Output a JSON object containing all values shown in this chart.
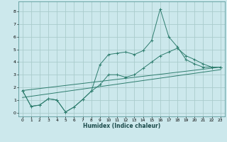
{
  "xlabel": "Humidex (Indice chaleur)",
  "bg_color": "#cce8ec",
  "grid_color": "#aacccc",
  "line_color": "#2e7d6e",
  "xlim": [
    -0.5,
    23.5
  ],
  "ylim": [
    -0.3,
    8.8
  ],
  "xticks": [
    0,
    1,
    2,
    3,
    4,
    5,
    6,
    7,
    8,
    9,
    10,
    11,
    12,
    13,
    14,
    15,
    16,
    17,
    18,
    19,
    20,
    21,
    22,
    23
  ],
  "yticks": [
    0,
    1,
    2,
    3,
    4,
    5,
    6,
    7,
    8
  ],
  "series1_x": [
    0,
    1,
    2,
    3,
    4,
    5,
    6,
    7,
    8,
    9,
    10,
    11,
    12,
    13,
    14,
    15,
    16,
    17,
    18,
    19,
    20,
    21,
    22,
    23
  ],
  "series1_y": [
    1.75,
    0.5,
    0.6,
    1.1,
    1.0,
    0.05,
    0.45,
    1.05,
    1.7,
    3.8,
    4.6,
    4.7,
    4.8,
    4.6,
    4.9,
    5.7,
    8.2,
    6.0,
    5.2,
    4.2,
    3.85,
    3.6,
    3.6,
    3.6
  ],
  "series2_x": [
    0,
    1,
    2,
    3,
    4,
    5,
    6,
    7,
    8,
    9,
    10,
    11,
    12,
    13,
    14,
    15,
    16,
    17,
    18,
    19,
    20,
    21,
    22,
    23
  ],
  "series2_y": [
    1.75,
    0.5,
    0.6,
    1.1,
    1.0,
    0.05,
    0.45,
    1.05,
    1.7,
    2.2,
    3.0,
    3.0,
    2.8,
    3.0,
    3.5,
    4.0,
    4.5,
    4.8,
    5.1,
    4.5,
    4.2,
    3.85,
    3.6,
    3.6
  ],
  "series3_x": [
    0,
    23
  ],
  "series3_y": [
    1.75,
    3.6
  ],
  "series4_x": [
    0,
    23
  ],
  "series4_y": [
    1.2,
    3.4
  ]
}
